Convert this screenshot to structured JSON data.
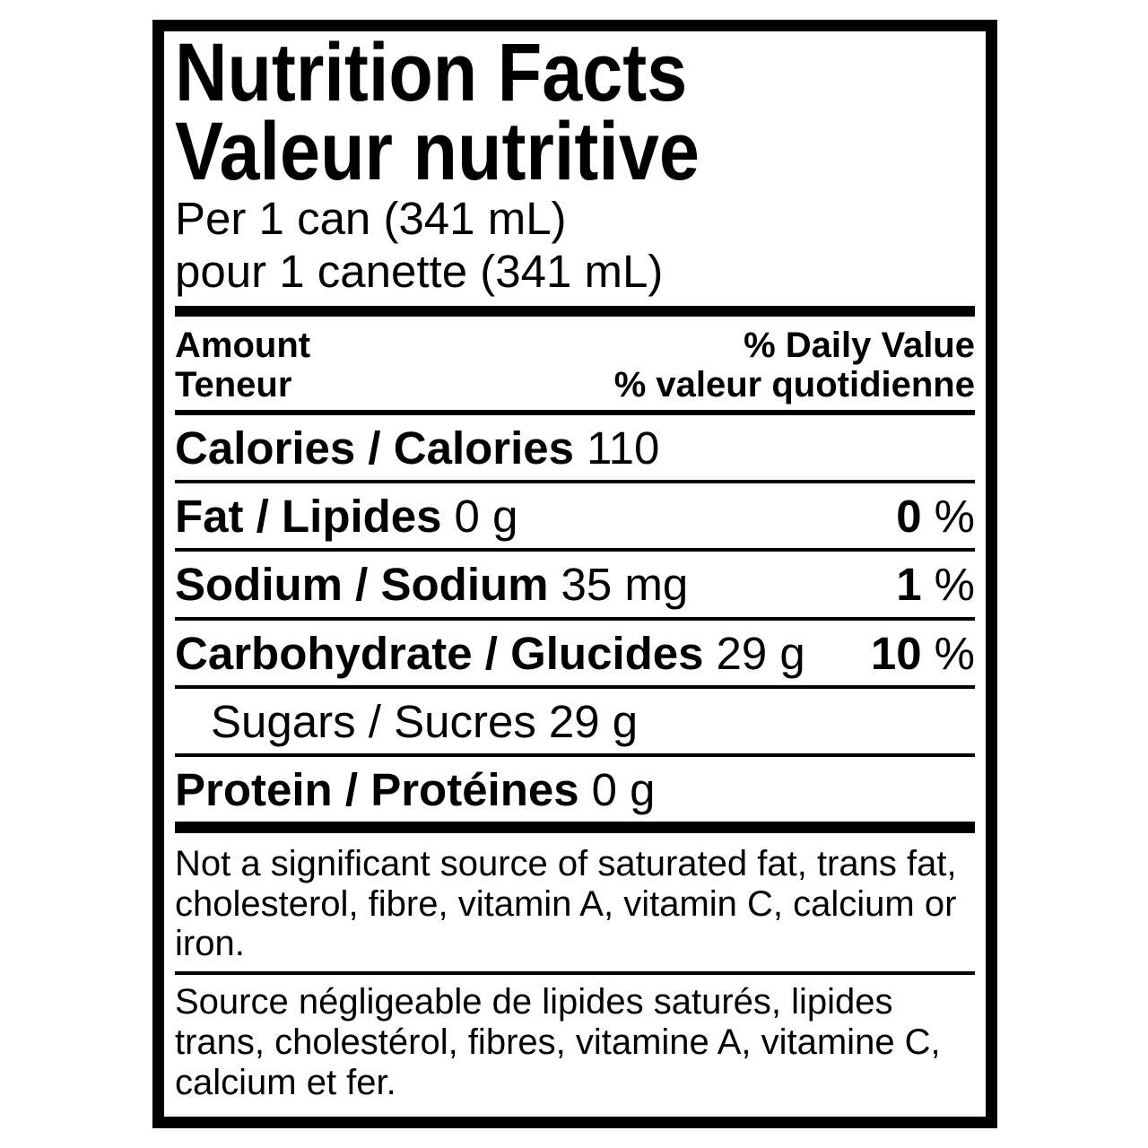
{
  "label": {
    "title_en": "Nutrition Facts",
    "title_fr": "Valeur nutritive",
    "serving_en": "Per 1 can (341 mL)",
    "serving_fr": "pour 1 canette (341 mL)",
    "header": {
      "amount_en": "Amount",
      "amount_fr": "Teneur",
      "daily_value_en": "% Daily Value",
      "daily_value_fr": "% valeur quotidienne"
    },
    "calories": {
      "name": "Calories / Calories",
      "value": "110"
    },
    "percent_sign": "%",
    "nutrients": [
      {
        "name": "Fat / Lipides",
        "amount": "0 g",
        "dv": "0"
      },
      {
        "name": "Sodium / Sodium",
        "amount": "35 mg",
        "dv": "1"
      },
      {
        "name": "Carbohydrate / Glucides",
        "amount": "29 g",
        "dv": "10"
      },
      {
        "name": "Sugars / Sucres",
        "amount": "29 g"
      },
      {
        "name": "Protein / Protéines",
        "amount": "0 g"
      }
    ],
    "footnote_en": "Not a significant source of saturated fat, trans fat, cholesterol, fibre, vitamin A, vitamin C, calcium or iron.",
    "footnote_fr": "Source négligeable de lipides saturés, lipides trans, cholestérol, fibres, vitamine A, vitamine C, calcium et fer."
  }
}
